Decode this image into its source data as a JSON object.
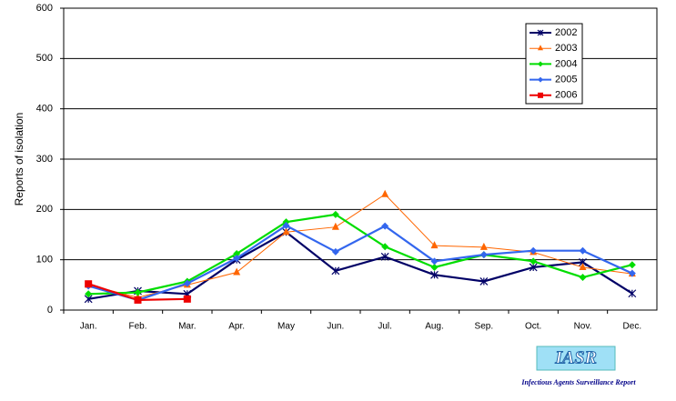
{
  "chart_data": {
    "type": "line",
    "ylabel": "Reports of isolation",
    "categories": [
      "Jan.",
      "Feb.",
      "Mar.",
      "Apr.",
      "May",
      "Jun.",
      "Jul.",
      "Aug.",
      "Sep.",
      "Oct.",
      "Nov.",
      "Dec."
    ],
    "series": [
      {
        "name": "2002",
        "color": "#000066",
        "marker": "asterisk",
        "values": [
          22,
          38,
          32,
          100,
          155,
          78,
          106,
          70,
          57,
          85,
          95,
          33
        ]
      },
      {
        "name": "2003",
        "color": "#ff6600",
        "marker": "triangle",
        "values": [
          50,
          25,
          50,
          75,
          155,
          165,
          230,
          128,
          125,
          115,
          85,
          72
        ]
      },
      {
        "name": "2004",
        "color": "#00dd00",
        "marker": "diamond",
        "values": [
          32,
          35,
          57,
          112,
          175,
          190,
          126,
          85,
          110,
          97,
          65,
          90
        ]
      },
      {
        "name": "2005",
        "color": "#3366ee",
        "marker": "diamond",
        "values": [
          48,
          20,
          53,
          103,
          168,
          116,
          167,
          97,
          110,
          118,
          118,
          73
        ]
      },
      {
        "name": "2006",
        "color": "#ee0000",
        "marker": "square",
        "values": [
          52,
          20,
          22,
          null,
          null,
          null,
          null,
          null,
          null,
          null,
          null,
          null
        ]
      }
    ],
    "ylim": [
      0,
      600
    ],
    "yticks": [
      0,
      100,
      200,
      300,
      400,
      500,
      600
    ],
    "grid": true,
    "legend": "upper right",
    "logo": {
      "title": "IASR",
      "subtitle": "Infectious Agents Surveillance Report"
    }
  }
}
